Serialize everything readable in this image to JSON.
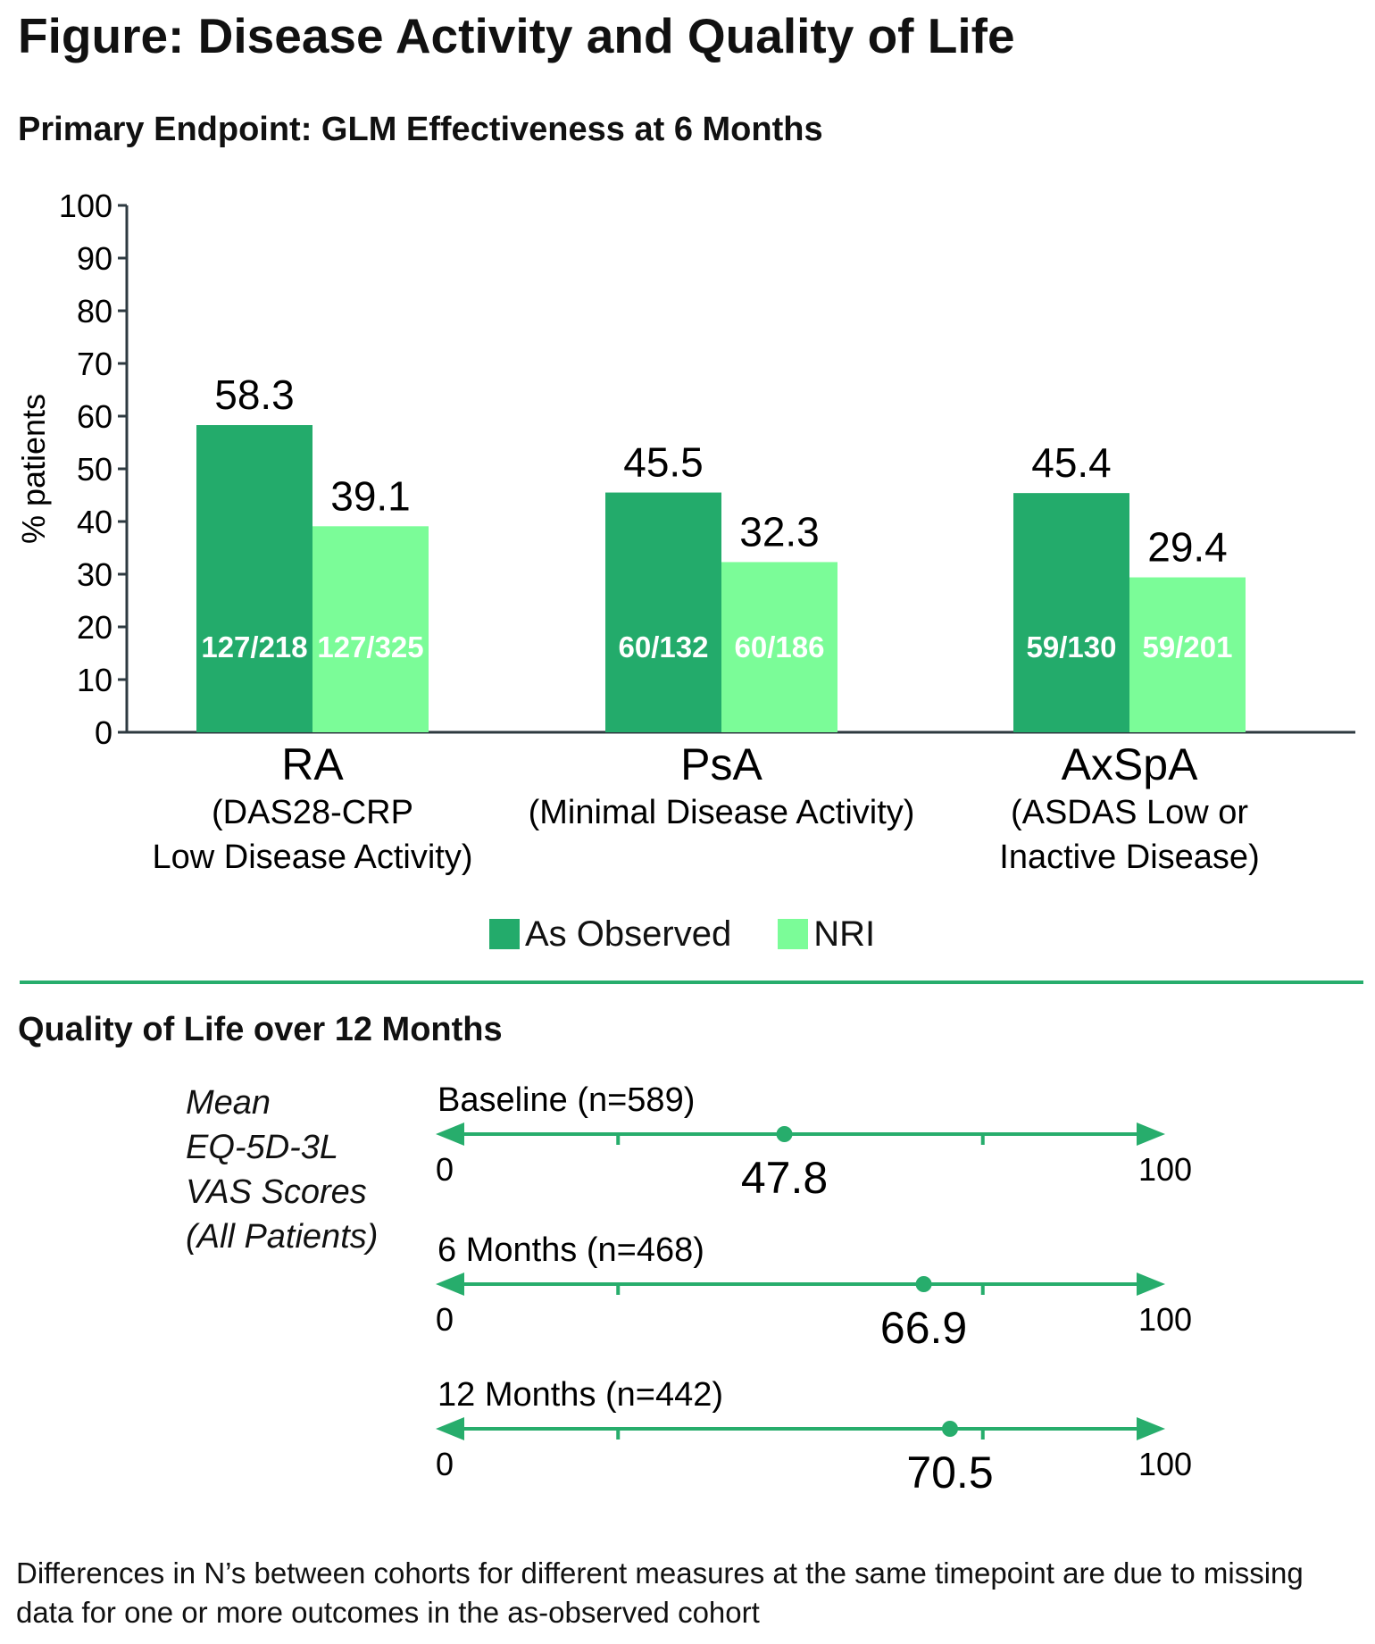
{
  "figure_title": "Figure: Disease Activity and Quality of Life",
  "colors": {
    "as_observed": "#23ab6b",
    "nri": "#7bfc98",
    "axis": "#2e3a40",
    "qol_line": "#27ad6c"
  },
  "chart_data": [
    {
      "type": "bar",
      "title": "Primary Endpoint: GLM Effectiveness at 6 Months",
      "ylabel": "% patients",
      "ylim": [
        0,
        100
      ],
      "yticks": [
        "0",
        "10",
        "20",
        "30",
        "40",
        "50",
        "60",
        "70",
        "80",
        "90",
        "100"
      ],
      "categories": [
        "RA",
        "PsA",
        "AxSpA"
      ],
      "category_sublabels": [
        [
          "(DAS28-CRP",
          "Low Disease Activity)"
        ],
        [
          "(Minimal Disease Activity)"
        ],
        [
          "(ASDAS Low  or",
          "Inactive Disease)"
        ]
      ],
      "series": [
        {
          "name": "As Observed",
          "values": [
            58.3,
            45.5,
            45.4
          ],
          "value_labels": [
            "58.3",
            "45.5",
            "45.4"
          ],
          "n_labels": [
            "127/218",
            "60/132",
            "59/130"
          ]
        },
        {
          "name": "NRI",
          "values": [
            39.1,
            32.3,
            29.4
          ],
          "value_labels": [
            "39.1",
            "32.3",
            "29.4"
          ],
          "n_labels": [
            "127/325",
            "60/186",
            "59/201"
          ]
        }
      ],
      "legend_position": "bottom-center",
      "grid": false
    },
    {
      "type": "scatter",
      "title": "Quality of Life over 12 Months",
      "ylabel_lines": [
        "Mean",
        "EQ-5D-3L",
        "VAS Scores",
        "(All Patients)"
      ],
      "xlim": [
        0,
        100
      ],
      "scale_min_label": "0",
      "scale_max_label": "100",
      "rows": [
        {
          "label": "Baseline (n=589)",
          "value": 47.8,
          "value_label": "47.8"
        },
        {
          "label": "6 Months (n=468)",
          "value": 66.9,
          "value_label": "66.9"
        },
        {
          "label": "12 Months (n=442)",
          "value": 70.5,
          "value_label": "70.5"
        }
      ]
    }
  ],
  "footnote": "Differences in N’s between cohorts for different measures at the same timepoint are due to missing data for one or more outcomes in the as-observed cohort"
}
